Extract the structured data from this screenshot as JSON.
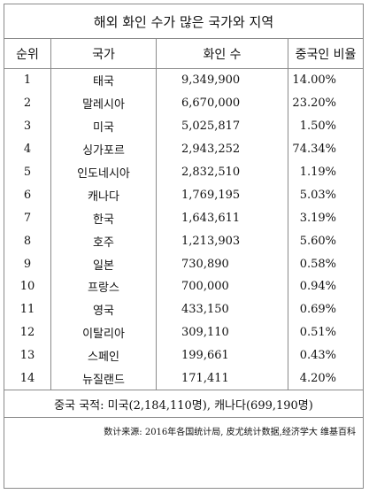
{
  "title": "해외 화인 수가 많은 국가와 지역",
  "headers": {
    "rank": "순위",
    "country": "국가",
    "count": "화인 수",
    "ratio": "중국인 비율"
  },
  "rows": [
    {
      "rank": "1",
      "country": "태국",
      "count": "9,349,900",
      "ratio": "14.00%"
    },
    {
      "rank": "2",
      "country": "말레시아",
      "count": "6,670,000",
      "ratio": "23.20%"
    },
    {
      "rank": "3",
      "country": "미국",
      "count": "5,025,817",
      "ratio": "1.50%"
    },
    {
      "rank": "4",
      "country": "싱가포르",
      "count": "2,943,252",
      "ratio": "74.34%"
    },
    {
      "rank": "5",
      "country": "인도네시아",
      "count": "2,832,510",
      "ratio": "1.19%"
    },
    {
      "rank": "6",
      "country": "캐나다",
      "count": "1,769,195",
      "ratio": "5.03%"
    },
    {
      "rank": "7",
      "country": "한국",
      "count": "1,643,611",
      "ratio": "3.19%"
    },
    {
      "rank": "8",
      "country": "호주",
      "count": "1,213,903",
      "ratio": "5.60%"
    },
    {
      "rank": "9",
      "country": "일본",
      "count": "730,890",
      "ratio": "0.58%"
    },
    {
      "rank": "10",
      "country": "프랑스",
      "count": "700,000",
      "ratio": "0.94%"
    },
    {
      "rank": "11",
      "country": "영국",
      "count": "433,150",
      "ratio": "0.69%"
    },
    {
      "rank": "12",
      "country": "이탈리아",
      "count": "309,110",
      "ratio": "0.51%"
    },
    {
      "rank": "13",
      "country": "스페인",
      "count": "199,661",
      "ratio": "0.43%"
    },
    {
      "rank": "14",
      "country": "뉴질랜드",
      "count": "171,411",
      "ratio": "4.20%"
    }
  ],
  "note": "중국 국적: 미국(2,184,110명), 캐나다(699,190명)",
  "source": "数计来源: 2016年各国统计局, 皮尤统计数据,经济学大 维基百科"
}
